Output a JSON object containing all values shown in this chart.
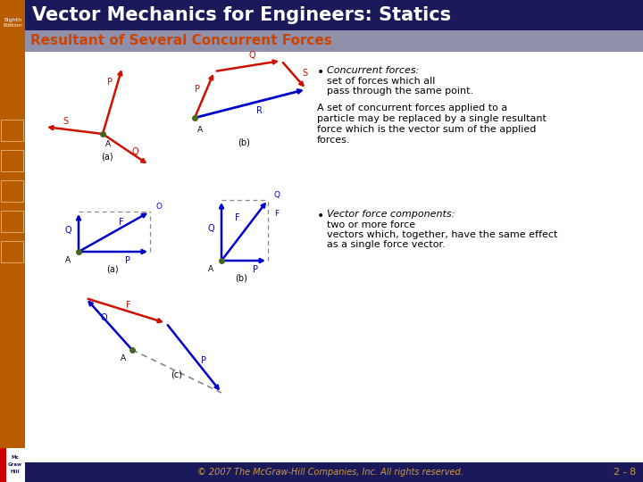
{
  "title": "Vector Mechanics for Engineers: Statics",
  "subtitle": "Resultant of Several Concurrent Forces",
  "title_bg": "#1a1a5a",
  "subtitle_bg": "#9090aa",
  "sidebar_color": "#b85c00",
  "footer_bg": "#1a1a5a",
  "footer_text": "© 2007 The McGraw-Hill Companies, Inc. All rights reserved.",
  "page_num": "2 - 8",
  "bg_white": "#ffffff",
  "red_color": "#cc1100",
  "blue_color": "#0000cc",
  "green_dot": "#446622",
  "subtitle_color": "#cc4400",
  "text_color": "#000000",
  "footer_text_color": "#cc9944"
}
